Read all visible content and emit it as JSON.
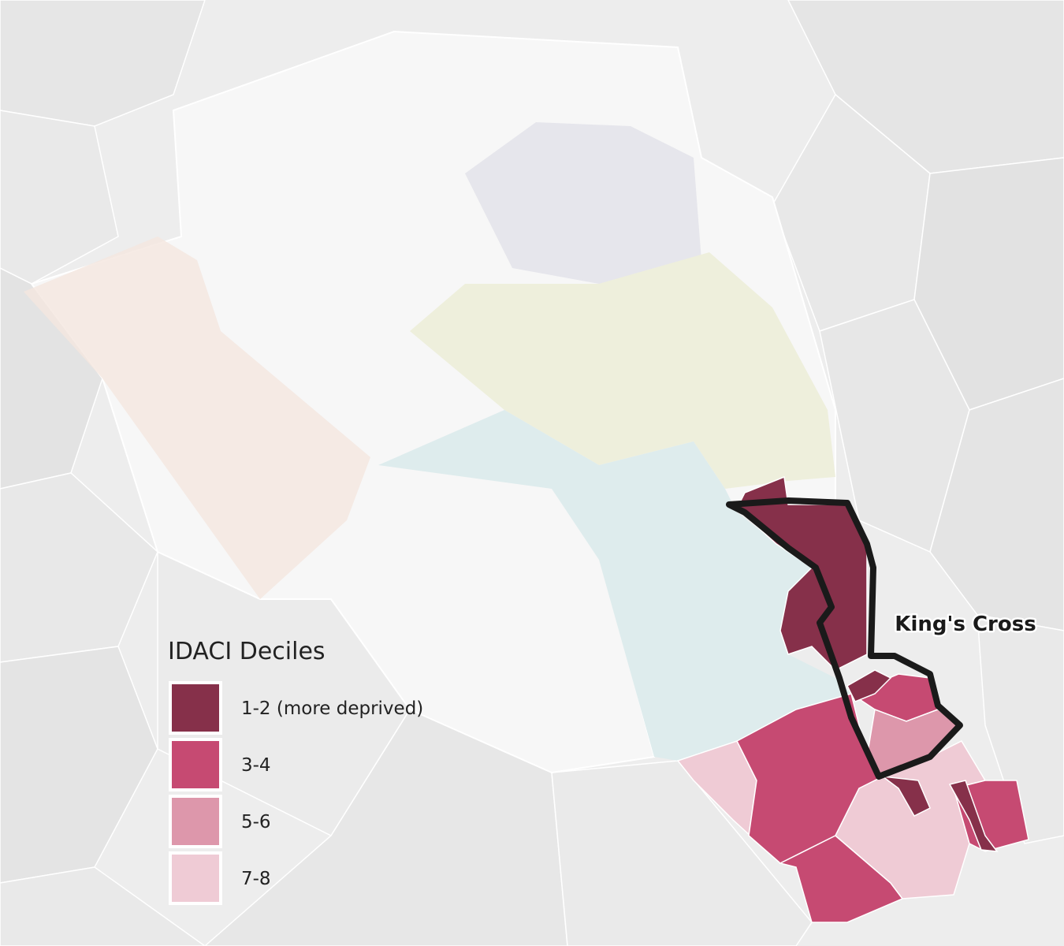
{
  "legend": {
    "title": "IDACI Deciles",
    "items": [
      {
        "label": "1-2 (more deprived)",
        "color": "#86304a"
      },
      {
        "label": "3-4",
        "color": "#c64a72"
      },
      {
        "label": "5-6",
        "color": "#dd97ab"
      },
      {
        "label": "7-8",
        "color": "#efcbd5"
      }
    ]
  },
  "labels": {
    "area": "King's Cross"
  }
}
